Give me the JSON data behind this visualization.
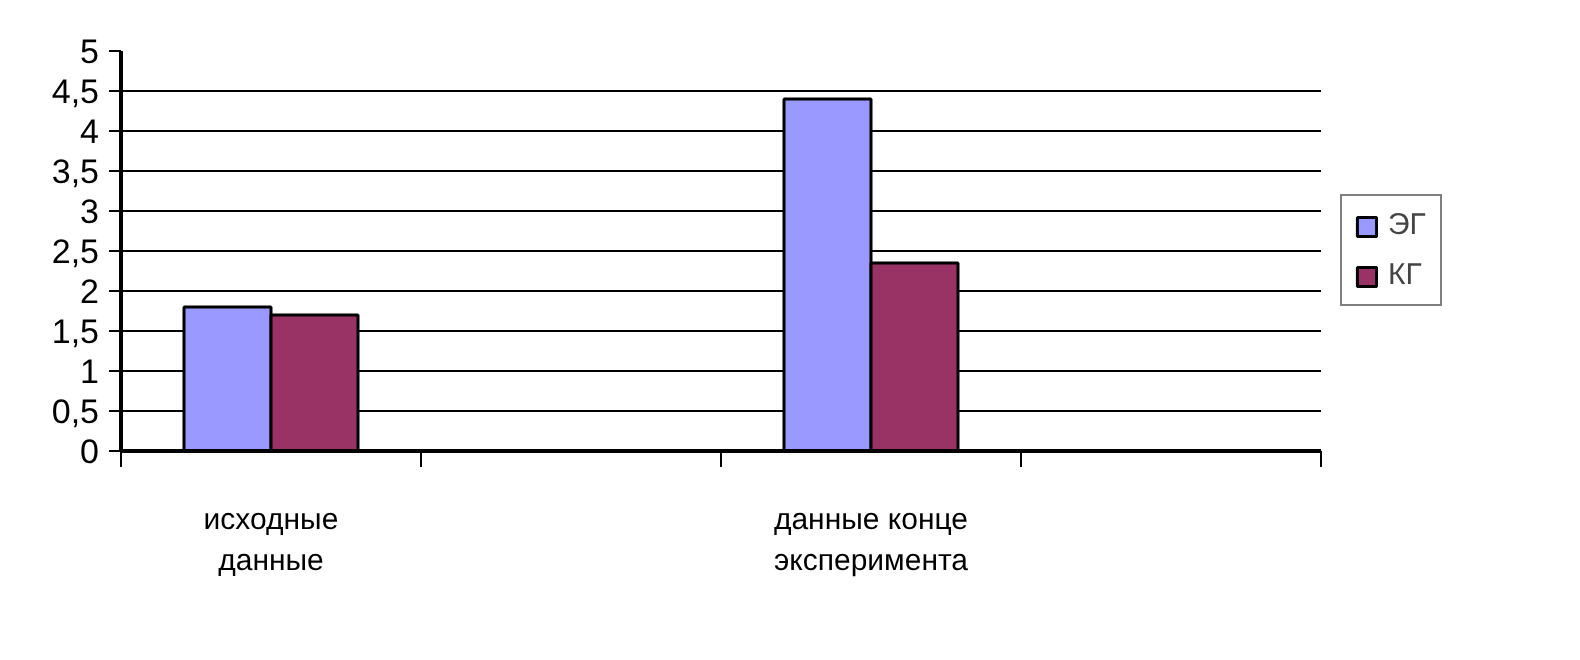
{
  "chart_data": {
    "type": "bar",
    "categories": [
      "исходные данные",
      null,
      "данные конце эксперимента",
      null
    ],
    "series": [
      {
        "name": "ЭГ",
        "color": "#9999ff",
        "values": [
          1.8,
          null,
          4.4,
          null
        ]
      },
      {
        "name": "КГ",
        "color": "#993366",
        "values": [
          1.7,
          null,
          2.35,
          null
        ]
      }
    ],
    "ylim": [
      0,
      5
    ],
    "yticks": [
      0,
      {
        "value": 0.5,
        "label": "0,5"
      },
      1,
      {
        "value": 1.5,
        "label": "1,5"
      },
      2,
      {
        "value": 2.5,
        "label": "2,5"
      },
      3,
      {
        "value": 3.5,
        "label": "3,5"
      },
      4,
      {
        "value": 4.5,
        "label": "4,5"
      },
      5
    ],
    "grid": "y",
    "legend": "right"
  }
}
